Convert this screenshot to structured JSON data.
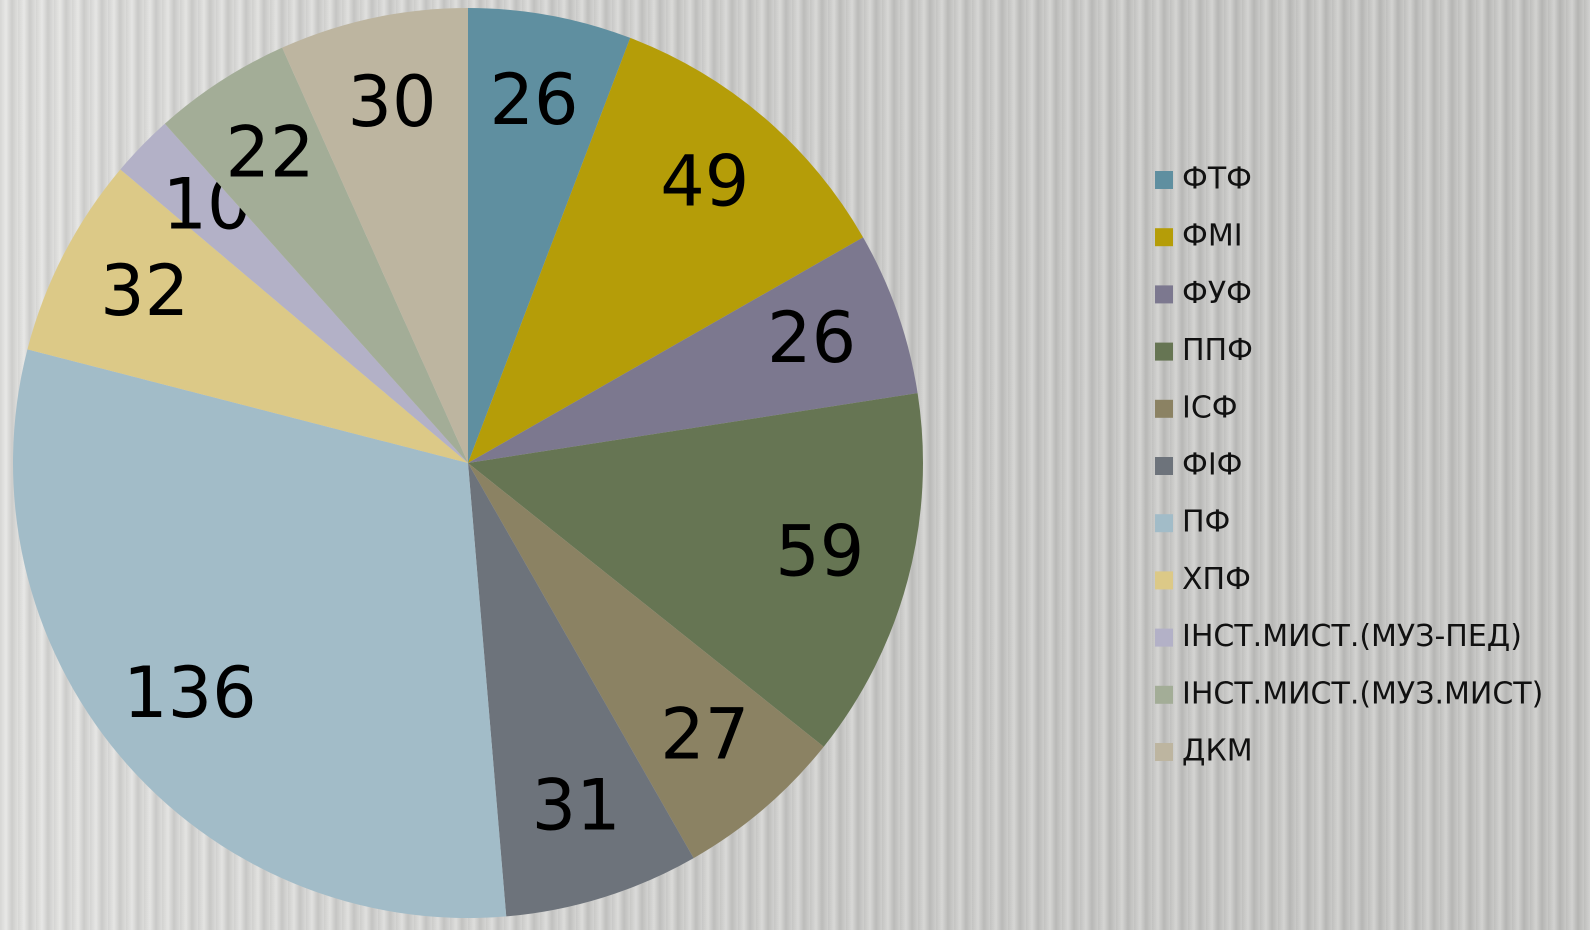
{
  "chart_data": {
    "type": "pie",
    "categories": [
      "ФТФ",
      "ФМІ",
      "ФУФ",
      "ППФ",
      "ІСФ",
      "ФІФ",
      "ПФ",
      "ХПФ",
      "ІНСТ.МИСТ.(МУЗ-ПЕД)",
      "ІНСТ.МИСТ.(МУЗ.МИСТ)",
      "ДКМ"
    ],
    "values": [
      26,
      49,
      26,
      59,
      27,
      31,
      136,
      32,
      10,
      22,
      30
    ],
    "colors": [
      "#5f8fa0",
      "#b59d08",
      "#7c788f",
      "#667553",
      "#8b8263",
      "#6d737b",
      "#a2bcc8",
      "#dcc987",
      "#b3b1c7",
      "#a3ad97",
      "#bdb5a0"
    ],
    "legend": "right"
  }
}
